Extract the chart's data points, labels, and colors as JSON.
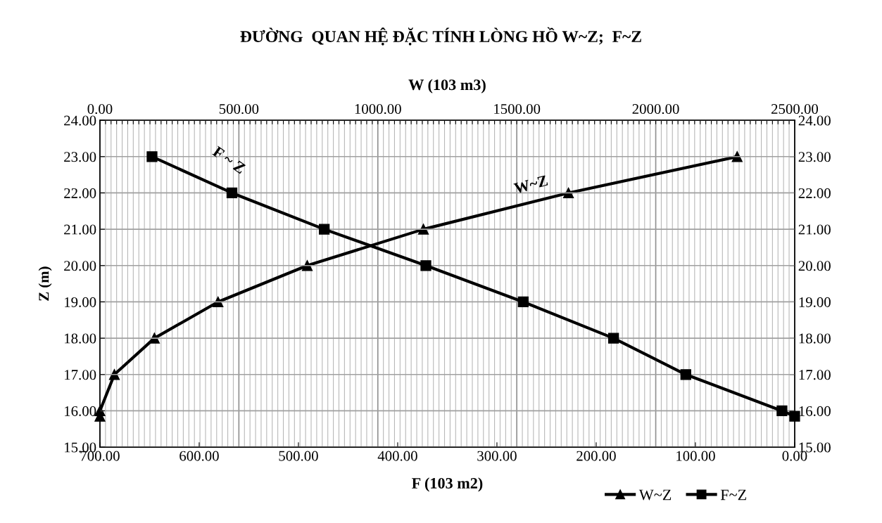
{
  "chart_data": {
    "type": "line",
    "title": "ĐƯỜNG  QUAN HỆ ĐẶC TÍNH LÒNG HỒ W~Z;  F~Z",
    "xlabel": "F (103 m2)",
    "x2label": "W (103 m3)",
    "ylabel": "Z (m)",
    "series": [
      {
        "name": "W~Z",
        "color": "#000000",
        "marker": "triangle",
        "axis": "x2",
        "x": [
          0,
          0,
          52,
          196,
          425,
          746,
          1164,
          1686,
          2293
        ],
        "values": [
          15.85,
          16,
          17,
          18,
          19,
          20,
          21,
          22,
          23
        ]
      },
      {
        "name": "F~Z",
        "color": "#000000",
        "marker": "square",
        "x": [
          647.5,
          567,
          474,
          371.6,
          273.5,
          182.5,
          109.7,
          12.8,
          0
        ],
        "values": [
          23,
          22,
          21,
          20,
          19,
          18,
          17,
          16,
          15.85
        ]
      }
    ],
    "xlim": [
      700,
      0
    ],
    "xticks": [
      {
        "value": 700,
        "label": "700.00"
      },
      {
        "value": 600,
        "label": "600.00"
      },
      {
        "value": 500,
        "label": "500.00"
      },
      {
        "value": 400,
        "label": "400.00"
      },
      {
        "value": 300,
        "label": "300.00"
      },
      {
        "value": 200,
        "label": "200.00"
      },
      {
        "value": 100,
        "label": "100.00"
      },
      {
        "value": 0,
        "label": "0.00"
      }
    ],
    "x2lim": [
      0,
      2500
    ],
    "x2ticks": [
      {
        "value": 0,
        "label": "0.00"
      },
      {
        "value": 20,
        "label": null
      },
      {
        "value": 40,
        "label": null
      },
      {
        "value": 60,
        "label": null
      },
      {
        "value": 80,
        "label": null
      },
      {
        "value": 100,
        "label": null
      },
      {
        "value": 120,
        "label": null
      },
      {
        "value": 140,
        "label": null
      },
      {
        "value": 160,
        "label": null
      },
      {
        "value": 180,
        "label": null
      },
      {
        "value": 200,
        "label": null
      },
      {
        "value": 220,
        "label": null
      },
      {
        "value": 240,
        "label": null
      },
      {
        "value": 260,
        "label": null
      },
      {
        "value": 280,
        "label": null
      },
      {
        "value": 300,
        "label": null
      },
      {
        "value": 320,
        "label": null
      },
      {
        "value": 340,
        "label": null
      },
      {
        "value": 360,
        "label": null
      },
      {
        "value": 380,
        "label": null
      },
      {
        "value": 400,
        "label": null
      },
      {
        "value": 420,
        "label": null
      },
      {
        "value": 440,
        "label": null
      },
      {
        "value": 460,
        "label": null
      },
      {
        "value": 480,
        "label": null
      },
      {
        "value": 500,
        "label": "500.00"
      },
      {
        "value": 520,
        "label": null
      },
      {
        "value": 540,
        "label": null
      },
      {
        "value": 560,
        "label": null
      },
      {
        "value": 580,
        "label": null
      },
      {
        "value": 600,
        "label": null
      },
      {
        "value": 620,
        "label": null
      },
      {
        "value": 640,
        "label": null
      },
      {
        "value": 660,
        "label": null
      },
      {
        "value": 680,
        "label": null
      },
      {
        "value": 700,
        "label": null
      },
      {
        "value": 720,
        "label": null
      },
      {
        "value": 740,
        "label": null
      },
      {
        "value": 760,
        "label": null
      },
      {
        "value": 780,
        "label": null
      },
      {
        "value": 800,
        "label": null
      },
      {
        "value": 820,
        "label": null
      },
      {
        "value": 840,
        "label": null
      },
      {
        "value": 860,
        "label": null
      },
      {
        "value": 880,
        "label": null
      },
      {
        "value": 900,
        "label": null
      },
      {
        "value": 920,
        "label": null
      },
      {
        "value": 940,
        "label": null
      },
      {
        "value": 960,
        "label": null
      },
      {
        "value": 980,
        "label": null
      },
      {
        "value": 1000,
        "label": "1000.00"
      },
      {
        "value": 1020,
        "label": null
      },
      {
        "value": 1040,
        "label": null
      },
      {
        "value": 1060,
        "label": null
      },
      {
        "value": 1080,
        "label": null
      },
      {
        "value": 1100,
        "label": null
      },
      {
        "value": 1120,
        "label": null
      },
      {
        "value": 1140,
        "label": null
      },
      {
        "value": 1160,
        "label": null
      },
      {
        "value": 1180,
        "label": null
      },
      {
        "value": 1200,
        "label": null
      },
      {
        "value": 1220,
        "label": null
      },
      {
        "value": 1240,
        "label": null
      },
      {
        "value": 1260,
        "label": null
      },
      {
        "value": 1280,
        "label": null
      },
      {
        "value": 1300,
        "label": null
      },
      {
        "value": 1320,
        "label": null
      },
      {
        "value": 1340,
        "label": null
      },
      {
        "value": 1360,
        "label": null
      },
      {
        "value": 1380,
        "label": null
      },
      {
        "value": 1400,
        "label": null
      },
      {
        "value": 1420,
        "label": null
      },
      {
        "value": 1440,
        "label": null
      },
      {
        "value": 1460,
        "label": null
      },
      {
        "value": 1480,
        "label": null
      },
      {
        "value": 1500,
        "label": "1500.00"
      },
      {
        "value": 1520,
        "label": null
      },
      {
        "value": 1540,
        "label": null
      },
      {
        "value": 1560,
        "label": null
      },
      {
        "value": 1580,
        "label": null
      },
      {
        "value": 1600,
        "label": null
      },
      {
        "value": 1620,
        "label": null
      },
      {
        "value": 1640,
        "label": null
      },
      {
        "value": 1660,
        "label": null
      },
      {
        "value": 1680,
        "label": null
      },
      {
        "value": 1700,
        "label": null
      },
      {
        "value": 1720,
        "label": null
      },
      {
        "value": 1740,
        "label": null
      },
      {
        "value": 1760,
        "label": null
      },
      {
        "value": 1780,
        "label": null
      },
      {
        "value": 1800,
        "label": null
      },
      {
        "value": 1820,
        "label": null
      },
      {
        "value": 1840,
        "label": null
      },
      {
        "value": 1860,
        "label": null
      },
      {
        "value": 1880,
        "label": null
      },
      {
        "value": 1900,
        "label": null
      },
      {
        "value": 1920,
        "label": null
      },
      {
        "value": 1940,
        "label": null
      },
      {
        "value": 1960,
        "label": null
      },
      {
        "value": 1980,
        "label": null
      },
      {
        "value": 2000,
        "label": "2000.00"
      },
      {
        "value": 2020,
        "label": null
      },
      {
        "value": 2040,
        "label": null
      },
      {
        "value": 2060,
        "label": null
      },
      {
        "value": 2080,
        "label": null
      },
      {
        "value": 2100,
        "label": null
      },
      {
        "value": 2120,
        "label": null
      },
      {
        "value": 2140,
        "label": null
      },
      {
        "value": 2160,
        "label": null
      },
      {
        "value": 2180,
        "label": null
      },
      {
        "value": 2200,
        "label": null
      },
      {
        "value": 2220,
        "label": null
      },
      {
        "value": 2240,
        "label": null
      },
      {
        "value": 2260,
        "label": null
      },
      {
        "value": 2280,
        "label": null
      },
      {
        "value": 2300,
        "label": null
      },
      {
        "value": 2320,
        "label": null
      },
      {
        "value": 2340,
        "label": null
      },
      {
        "value": 2360,
        "label": null
      },
      {
        "value": 2380,
        "label": null
      },
      {
        "value": 2400,
        "label": null
      },
      {
        "value": 2420,
        "label": null
      },
      {
        "value": 2440,
        "label": null
      },
      {
        "value": 2460,
        "label": null
      },
      {
        "value": 2480,
        "label": null
      },
      {
        "value": 2500,
        "label": "2500.00"
      }
    ],
    "ylim": [
      15,
      24
    ],
    "yticks": [
      {
        "value": 15,
        "label": "15.00"
      },
      {
        "value": 16,
        "label": "16.00"
      },
      {
        "value": 17,
        "label": "17.00"
      },
      {
        "value": 18,
        "label": "18.00"
      },
      {
        "value": 19,
        "label": "19.00"
      },
      {
        "value": 20,
        "label": "20.00"
      },
      {
        "value": 21,
        "label": "21.00"
      },
      {
        "value": 22,
        "label": "22.00"
      },
      {
        "value": 23,
        "label": "23.00"
      },
      {
        "value": 24,
        "label": "24.00"
      }
    ],
    "y2lim": [
      15,
      24
    ],
    "y2ticks": [
      {
        "value": 15,
        "label": "15.00"
      },
      {
        "value": 16,
        "label": "16.00"
      },
      {
        "value": 17,
        "label": "17.00"
      },
      {
        "value": 18,
        "label": "18.00"
      },
      {
        "value": 19,
        "label": "19.00"
      },
      {
        "value": 20,
        "label": "20.00"
      },
      {
        "value": 21,
        "label": "21.00"
      },
      {
        "value": 22,
        "label": "22.00"
      },
      {
        "value": 23,
        "label": "23.00"
      },
      {
        "value": 24,
        "label": "24.00"
      }
    ],
    "annotations": [
      "F ~ Z",
      "W~Z"
    ],
    "grid": true,
    "legend": "bottom",
    "line_style": "solid"
  }
}
